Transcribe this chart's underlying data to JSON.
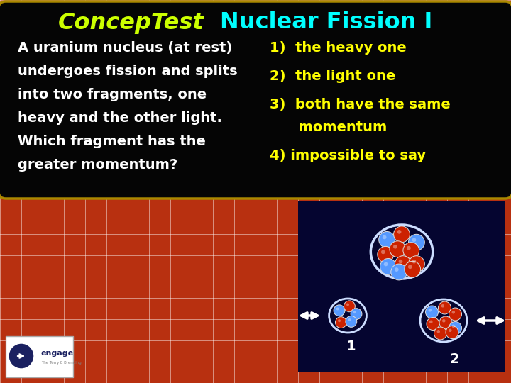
{
  "title_conceptest": "ConcepTest",
  "title_main": "Nuclear Fission I",
  "question_text": [
    "A uranium nucleus (at rest)",
    "undergoes fission and splits",
    "into two fragments, one",
    "heavy and the other light.",
    "Which fragment has the",
    "greater momentum?"
  ],
  "answer1": "1)  the heavy one",
  "answer2": "2)  the light one",
  "answer3a": "3)  both have the same",
  "answer3b": "      momentum",
  "answer4": "4) impossible to say",
  "bg_color": "#b83010",
  "dark_box_bg": "#050505",
  "navy_box_bg": "#050530",
  "title_italic_color": "#ccff00",
  "title_main_color": "#00ffff",
  "question_color": "#ffffff",
  "answer_color": "#ffff00",
  "grid_color": "#ffffff",
  "label_color": "#ffffff",
  "box_edge_color": "#aa8800",
  "tile_size": 30
}
